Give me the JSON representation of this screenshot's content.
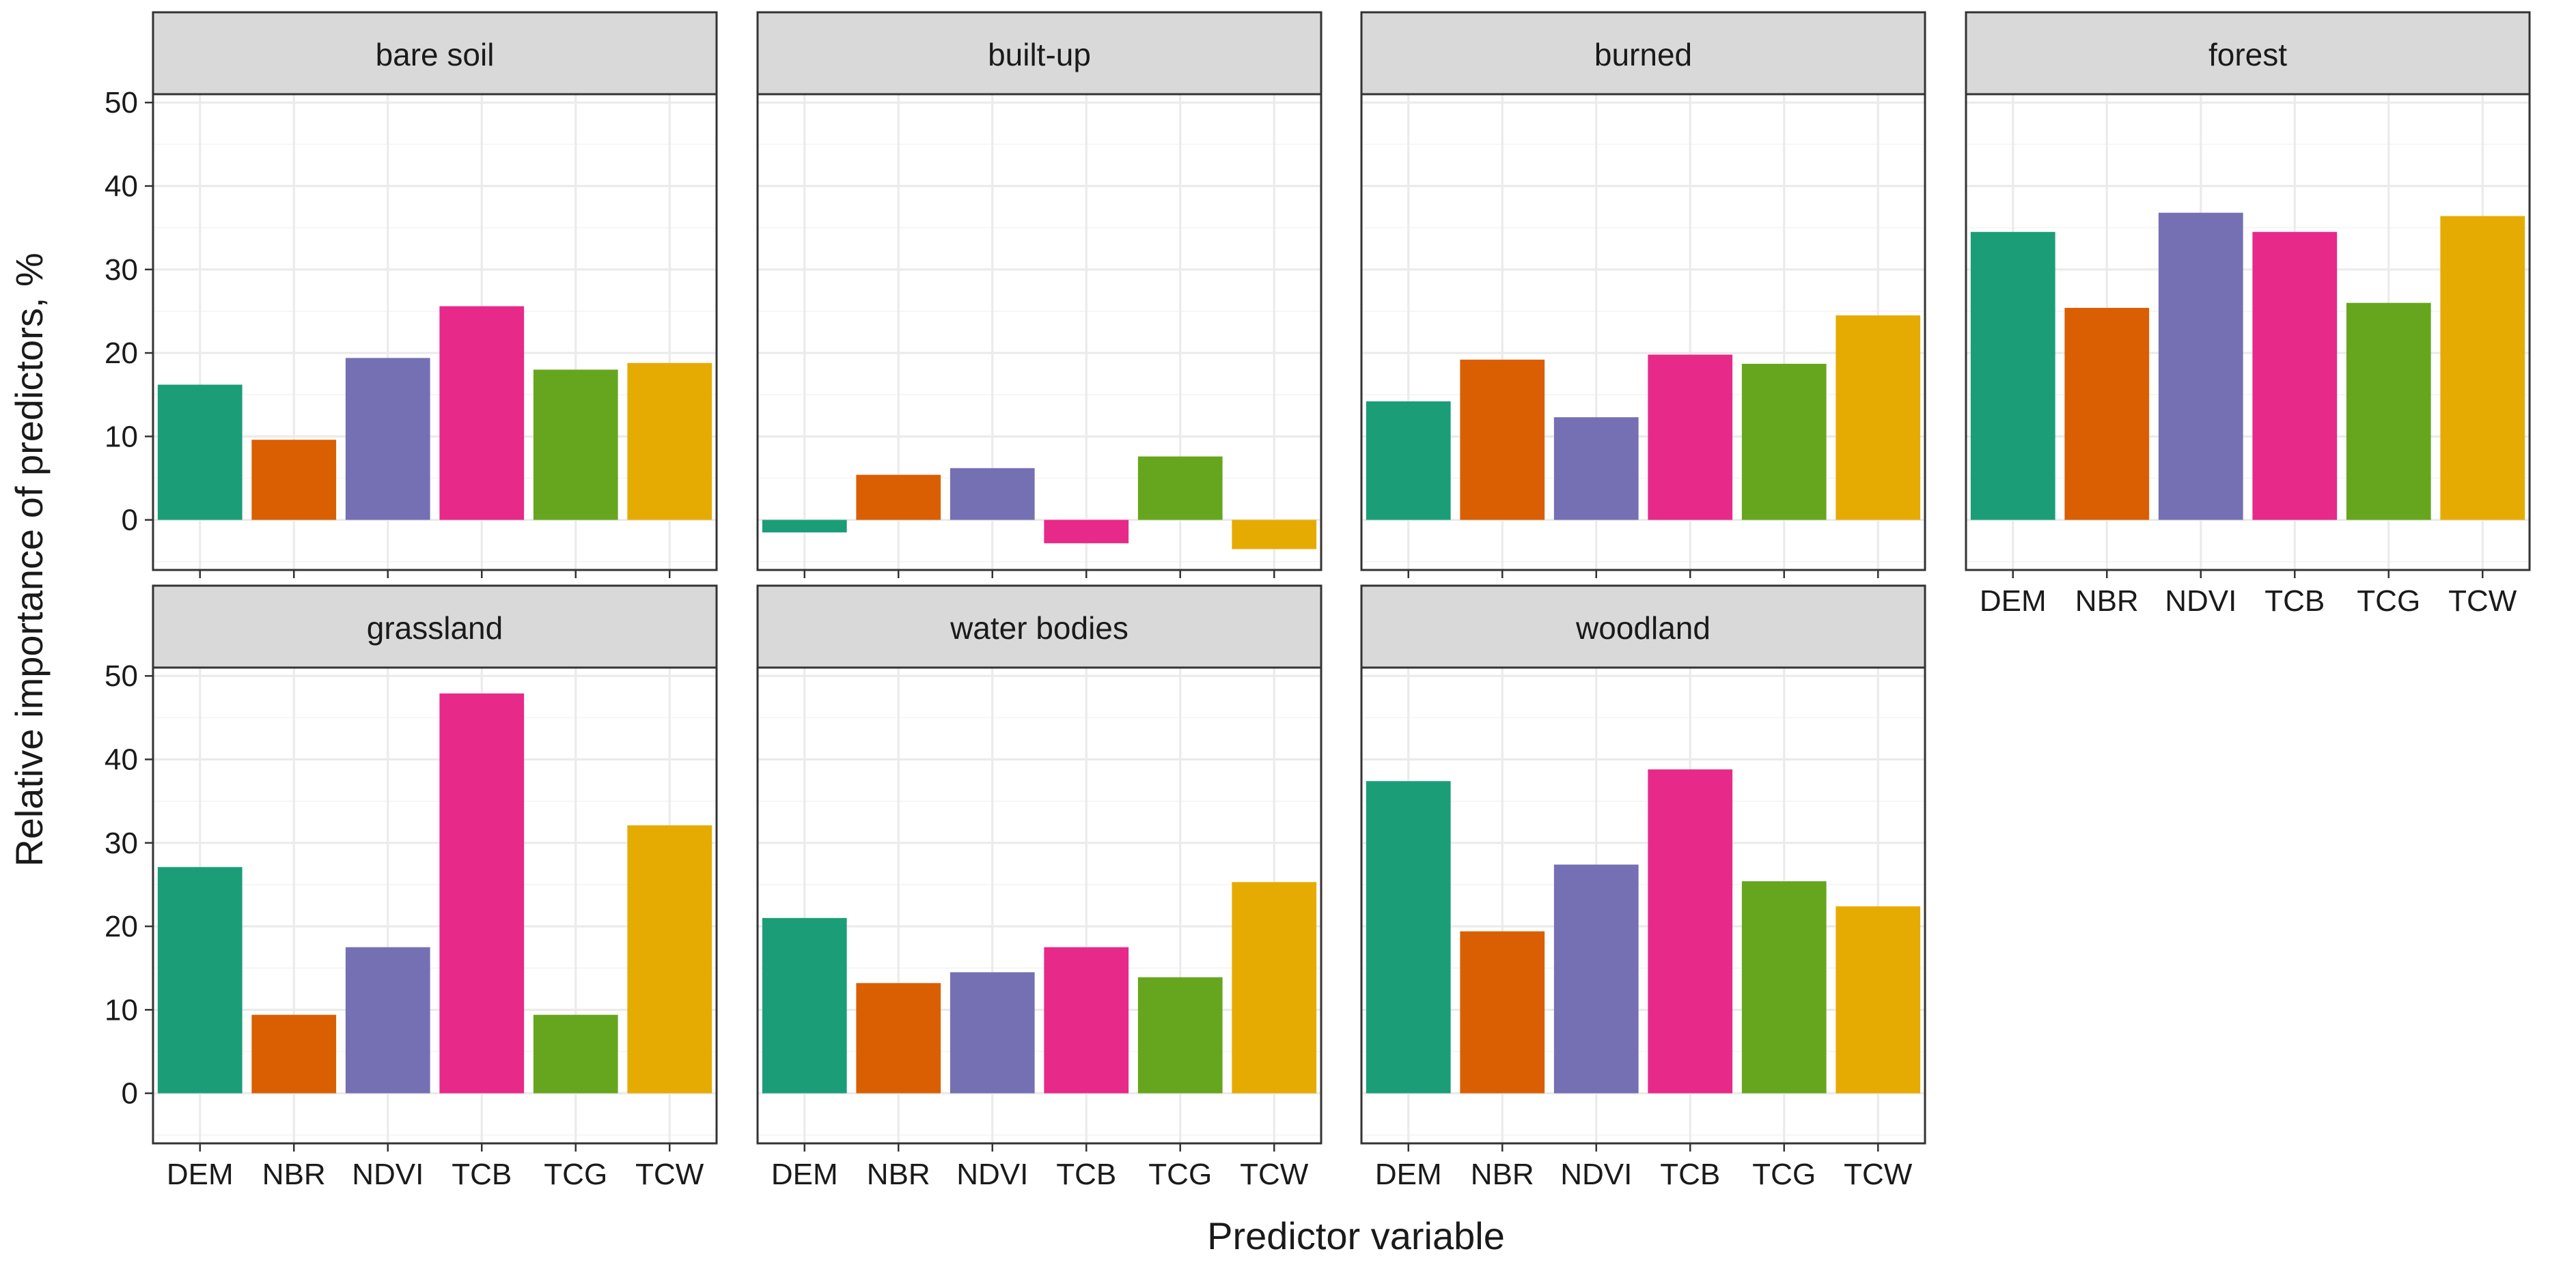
{
  "chart_data": {
    "type": "bar",
    "layout": "facet_wrap",
    "ncol": 4,
    "xlabel": "Predictor variable",
    "ylabel": "Relative importance of predictors, %",
    "ylim": [
      -6,
      51
    ],
    "yticks": [
      0,
      10,
      20,
      30,
      40,
      50
    ],
    "categories": [
      "DEM",
      "NBR",
      "NDVI",
      "TCB",
      "TCG",
      "TCW"
    ],
    "colors": [
      "#1b9e77",
      "#d95f02",
      "#7570b3",
      "#e7298a",
      "#66a61e",
      "#e6ab02"
    ],
    "panels": [
      {
        "title": "bare soil",
        "values": [
          16.2,
          9.6,
          19.4,
          25.6,
          18.0,
          18.8
        ]
      },
      {
        "title": "built-up",
        "values": [
          -1.5,
          5.4,
          6.2,
          -2.8,
          7.6,
          -3.5
        ]
      },
      {
        "title": "burned",
        "values": [
          14.2,
          19.2,
          12.3,
          19.8,
          18.7,
          24.5
        ]
      },
      {
        "title": "forest",
        "values": [
          34.5,
          25.4,
          36.8,
          34.5,
          26.0,
          36.4
        ]
      },
      {
        "title": "grassland",
        "values": [
          27.1,
          9.4,
          17.5,
          47.9,
          9.4,
          32.1
        ]
      },
      {
        "title": "water bodies",
        "values": [
          21.0,
          13.2,
          14.5,
          17.5,
          13.9,
          25.3
        ]
      },
      {
        "title": "woodland",
        "values": [
          37.4,
          19.4,
          27.4,
          38.8,
          25.4,
          22.4
        ]
      }
    ]
  }
}
